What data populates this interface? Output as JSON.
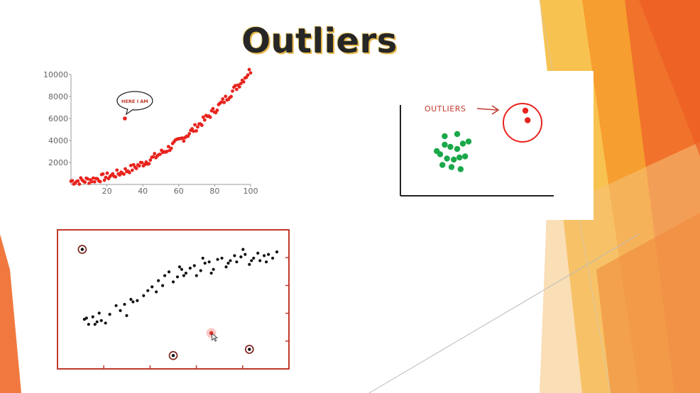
{
  "slide": {
    "title": "Outliers"
  },
  "colors": {
    "accent_orange": "#f5a623",
    "deep_orange": "#ef6a2a",
    "red_points": "#e8231d",
    "green_points": "#1aa84a",
    "border_red": "#c0392b"
  },
  "chart_data": [
    {
      "type": "scatter",
      "title": "",
      "annotation": "HERE I AM",
      "x_ticks": [
        "20",
        "40",
        "60",
        "80",
        "100"
      ],
      "y_ticks": [
        "2000",
        "4000",
        "6000",
        "8000",
        "10000"
      ],
      "xlim": [
        0,
        100
      ],
      "ylim": [
        0,
        10000
      ],
      "outlier": {
        "x": 30,
        "y": 6000
      },
      "trend": {
        "kind": "quadratic",
        "x_from": 0,
        "x_to": 100,
        "y_from": 300,
        "y_to": 10400
      },
      "point_color": "#e8231d"
    },
    {
      "type": "scatter",
      "label": "OUTLIERS",
      "cluster": [
        [
          3.2,
          4.2
        ],
        [
          3.9,
          4.8
        ],
        [
          4.4,
          4.6
        ],
        [
          5.0,
          4.4
        ],
        [
          5.5,
          4.9
        ],
        [
          3.5,
          3.9
        ],
        [
          4.1,
          3.5
        ],
        [
          4.7,
          3.4
        ],
        [
          5.2,
          3.6
        ],
        [
          5.7,
          3.7
        ],
        [
          3.7,
          2.9
        ],
        [
          4.5,
          2.7
        ],
        [
          5.3,
          2.5
        ],
        [
          3.9,
          5.6
        ],
        [
          5.0,
          5.8
        ],
        [
          6.0,
          5.1
        ]
      ],
      "outliers": [
        [
          11.0,
          8.0
        ],
        [
          11.2,
          7.1
        ]
      ],
      "cluster_color": "#1aa84a",
      "outlier_color": "#e8231d"
    },
    {
      "type": "scatter",
      "xlim": [
        0,
        10
      ],
      "ylim": [
        0,
        10
      ],
      "points": [
        [
          0.8,
          3.4
        ],
        [
          0.9,
          3.5
        ],
        [
          1.2,
          3.6
        ],
        [
          1.3,
          3.0
        ],
        [
          1.4,
          3.2
        ],
        [
          1.5,
          3.9
        ],
        [
          1.6,
          3.3
        ],
        [
          1.8,
          3.1
        ],
        [
          2.3,
          4.5
        ],
        [
          2.5,
          4.1
        ],
        [
          2.7,
          4.6
        ],
        [
          2.8,
          3.7
        ],
        [
          3.1,
          4.8
        ],
        [
          3.3,
          4.9
        ],
        [
          3.6,
          5.3
        ],
        [
          3.8,
          5.7
        ],
        [
          4.0,
          6.0
        ],
        [
          4.3,
          6.5
        ],
        [
          4.5,
          6.1
        ],
        [
          4.6,
          6.9
        ],
        [
          4.8,
          7.2
        ],
        [
          5.0,
          6.4
        ],
        [
          5.2,
          6.8
        ],
        [
          5.4,
          7.4
        ],
        [
          5.6,
          7.1
        ],
        [
          5.8,
          7.5
        ],
        [
          6.0,
          7.7
        ],
        [
          6.1,
          6.9
        ],
        [
          6.3,
          7.3
        ],
        [
          6.5,
          7.9
        ],
        [
          6.7,
          8.0
        ],
        [
          6.9,
          7.4
        ],
        [
          7.1,
          8.2
        ],
        [
          7.3,
          8.3
        ],
        [
          7.5,
          7.6
        ],
        [
          7.7,
          8.1
        ],
        [
          7.9,
          8.5
        ],
        [
          8.0,
          8.0
        ],
        [
          8.2,
          8.4
        ],
        [
          8.4,
          8.6
        ],
        [
          8.6,
          7.8
        ],
        [
          8.8,
          8.3
        ],
        [
          9.0,
          8.7
        ],
        [
          9.1,
          8.1
        ],
        [
          9.3,
          8.5
        ],
        [
          9.5,
          8.6
        ],
        [
          9.7,
          8.3
        ],
        [
          9.9,
          8.8
        ],
        [
          5.5,
          6.9
        ],
        [
          6.8,
          7.1
        ],
        [
          3.0,
          5.0
        ],
        [
          4.2,
          5.6
        ],
        [
          7.6,
          7.9
        ],
        [
          8.7,
          8.1
        ],
        [
          9.4,
          8.0
        ],
        [
          2.0,
          3.8
        ],
        [
          1.0,
          3.0
        ],
        [
          6.4,
          8.3
        ],
        [
          5.3,
          7.6
        ],
        [
          8.3,
          9.0
        ]
      ],
      "outliers": [
        [
          0.7,
          9.0
        ],
        [
          5.0,
          0.5
        ],
        [
          6.8,
          2.3
        ],
        [
          8.6,
          1.0
        ]
      ],
      "point_color": "#111111",
      "frame_color": "#c0392b"
    }
  ]
}
